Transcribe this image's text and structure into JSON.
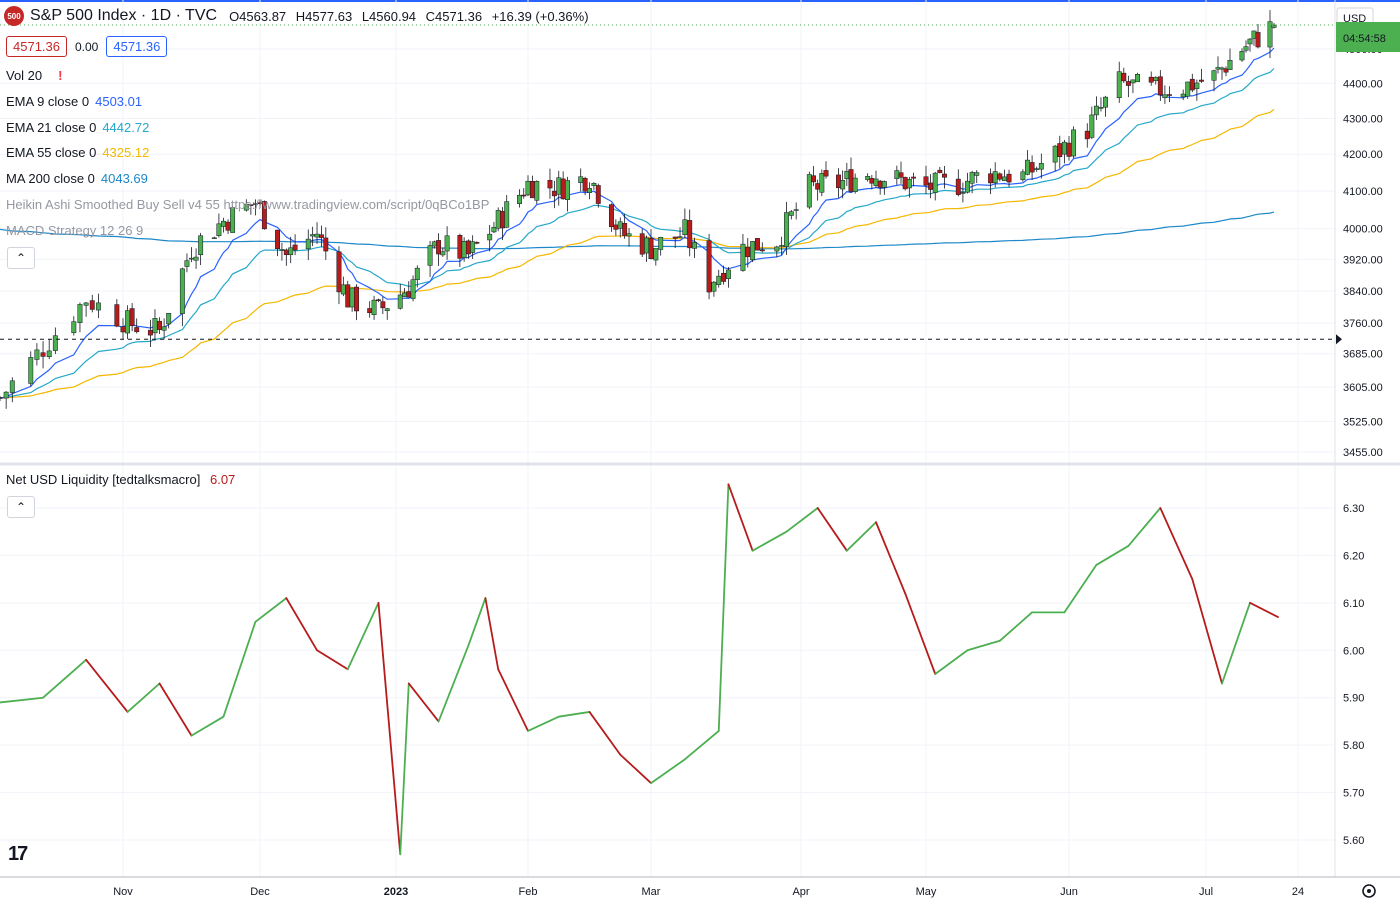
{
  "header": {
    "symbol_badge": "500",
    "title": "S&P 500 Index · 1D · TVC",
    "open": "O4563.87",
    "high": "H4577.63",
    "low": "L4560.94",
    "close": "C4571.36",
    "change": "+16.39 (+0.36%)",
    "bid": "4571.36",
    "spread": "0.00",
    "ask": "4571.36"
  },
  "indicators": [
    {
      "label": "Vol 20",
      "value": "!",
      "color": "#f23645"
    },
    {
      "label": "EMA 9 close 0",
      "value": "4503.01",
      "color": "#2962ff"
    },
    {
      "label": "EMA 21 close 0",
      "value": "4442.72",
      "color": "#26a8c9"
    },
    {
      "label": "EMA 55 close 0",
      "value": "4325.12",
      "color": "#f5b700"
    },
    {
      "label": "MA 200 close 0",
      "value": "4043.69",
      "color": "#1e88c9"
    },
    {
      "label": "Heikin Ashi Smoothed Buy Sell v4 55 https://www.tradingview.com/script/0qBCo1BP",
      "value": "",
      "color": "#9598a1"
    },
    {
      "label": "MACD Strategy 12 26 9",
      "value": "",
      "color": "#9598a1"
    }
  ],
  "lower_pane": {
    "label": "Net USD Liquidity [tedtalksmacro]",
    "value": "6.07",
    "value_color": "#b71c1c"
  },
  "price_axis": {
    "currency": "USD",
    "countdown": "04:54:58",
    "ticks": [
      "4500.00",
      "4400.00",
      "4300.00",
      "4200.00",
      "4100.00",
      "4000.00",
      "3920.00",
      "3840.00",
      "3760.00",
      "3685.00",
      "3605.00",
      "3525.00",
      "3455.00"
    ],
    "liq_ticks": [
      "6.30",
      "6.20",
      "6.10",
      "6.00",
      "5.90",
      "5.80",
      "5.70",
      "5.60"
    ]
  },
  "time_axis": {
    "labels": [
      "Nov",
      "Dec",
      "2023",
      "Feb",
      "Mar",
      "Apr",
      "May",
      "Jun",
      "Jul",
      "24"
    ]
  },
  "colors": {
    "up": "#4caf50",
    "down": "#b71c1c",
    "ema9": "#2962ff",
    "ema21": "#26a8c9",
    "ema55": "#f5b700",
    "ma200": "#1e88c9",
    "grid": "#f0f3fa"
  },
  "chart_data": [
    {
      "type": "candlestick",
      "title": "S&P 500 Index · 1D · TVC",
      "ylim": [
        3455,
        4580
      ],
      "scale": "log",
      "x_range": [
        "2022-10-12",
        "2023-07-24"
      ],
      "close_path": [
        [
          "2022-10-12",
          3580
        ],
        [
          "2022-10-19",
          3700
        ],
        [
          "2022-10-26",
          3820
        ],
        [
          "2022-11-02",
          3760
        ],
        [
          "2022-11-09",
          3740
        ],
        [
          "2022-11-16",
          3950
        ],
        [
          "2022-11-23",
          4020
        ],
        [
          "2022-11-30",
          4070
        ],
        [
          "2022-12-07",
          3930
        ],
        [
          "2022-12-14",
          3990
        ],
        [
          "2022-12-21",
          3820
        ],
        [
          "2022-12-28",
          3790
        ],
        [
          "2023-01-04",
          3850
        ],
        [
          "2023-01-11",
          3960
        ],
        [
          "2023-01-18",
          3930
        ],
        [
          "2023-01-25",
          4020
        ],
        [
          "2023-02-01",
          4120
        ],
        [
          "2023-02-08",
          4110
        ],
        [
          "2023-02-15",
          4140
        ],
        [
          "2023-02-22",
          3990
        ],
        [
          "2023-03-01",
          3950
        ],
        [
          "2023-03-08",
          3990
        ],
        [
          "2023-03-13",
          3860
        ],
        [
          "2023-03-20",
          3950
        ],
        [
          "2023-03-27",
          3970
        ],
        [
          "2023-04-03",
          4110
        ],
        [
          "2023-04-10",
          4120
        ],
        [
          "2023-04-17",
          4150
        ],
        [
          "2023-04-24",
          4130
        ],
        [
          "2023-05-01",
          4110
        ],
        [
          "2023-05-08",
          4120
        ],
        [
          "2023-05-15",
          4150
        ],
        [
          "2023-05-22",
          4140
        ],
        [
          "2023-05-29",
          4200
        ],
        [
          "2023-06-05",
          4270
        ],
        [
          "2023-06-12",
          4400
        ],
        [
          "2023-06-19",
          4380
        ],
        [
          "2023-06-26",
          4390
        ],
        [
          "2023-07-03",
          4420
        ],
        [
          "2023-07-10",
          4500
        ],
        [
          "2023-07-18",
          4571
        ]
      ],
      "series": [
        {
          "name": "EMA 9 close 0",
          "last": 4503.01
        },
        {
          "name": "EMA 21 close 0",
          "last": 4442.72
        },
        {
          "name": "EMA 55 close 0",
          "last": 4325.12
        },
        {
          "name": "MA 200 close 0",
          "last": 4043.69
        }
      ]
    },
    {
      "type": "line",
      "title": "Net USD Liquidity [tedtalksmacro]",
      "ylim": [
        5.55,
        6.37
      ],
      "x": [
        "2022-10-12",
        "2022-10-19",
        "2022-10-26",
        "2022-11-02",
        "2022-11-09",
        "2022-11-16",
        "2022-11-23",
        "2022-11-30",
        "2022-12-07",
        "2022-12-14",
        "2022-12-21",
        "2022-12-28",
        "2023-01-02",
        "2023-01-04",
        "2023-01-11",
        "2023-01-18",
        "2023-01-22",
        "2023-01-25",
        "2023-02-01",
        "2023-02-08",
        "2023-02-15",
        "2023-02-22",
        "2023-03-01",
        "2023-03-08",
        "2023-03-15",
        "2023-03-17",
        "2023-03-22",
        "2023-03-29",
        "2023-04-05",
        "2023-04-12",
        "2023-04-19",
        "2023-04-26",
        "2023-05-03",
        "2023-05-10",
        "2023-05-17",
        "2023-05-24",
        "2023-05-31",
        "2023-06-07",
        "2023-06-14",
        "2023-06-21",
        "2023-06-28",
        "2023-07-05",
        "2023-07-12",
        "2023-07-19"
      ],
      "values": [
        5.89,
        5.9,
        5.98,
        5.87,
        5.93,
        5.82,
        5.86,
        6.06,
        6.11,
        6.0,
        5.96,
        6.1,
        5.57,
        5.93,
        5.85,
        6.01,
        6.11,
        5.96,
        5.83,
        5.86,
        5.87,
        5.78,
        5.72,
        5.77,
        5.83,
        6.35,
        6.21,
        6.25,
        6.3,
        6.21,
        6.27,
        6.12,
        5.95,
        6.0,
        6.02,
        6.08,
        6.08,
        6.18,
        6.22,
        6.3,
        6.15,
        5.93,
        6.1,
        6.07
      ],
      "last": 6.07
    }
  ]
}
